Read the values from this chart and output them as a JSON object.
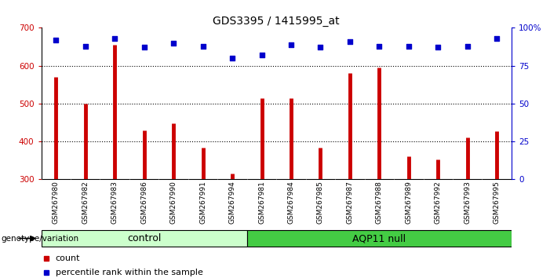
{
  "title": "GDS3395 / 1415995_at",
  "samples": [
    "GSM267980",
    "GSM267982",
    "GSM267983",
    "GSM267986",
    "GSM267990",
    "GSM267991",
    "GSM267994",
    "GSM267981",
    "GSM267984",
    "GSM267985",
    "GSM267987",
    "GSM267988",
    "GSM267989",
    "GSM267992",
    "GSM267993",
    "GSM267995"
  ],
  "counts": [
    570,
    500,
    655,
    430,
    447,
    383,
    315,
    515,
    515,
    384,
    580,
    595,
    360,
    353,
    410,
    428
  ],
  "percentile_ranks": [
    92,
    88,
    93,
    87,
    90,
    88,
    80,
    82,
    89,
    87,
    91,
    88,
    88,
    87,
    88,
    93
  ],
  "n_control": 7,
  "n_aqp11": 9,
  "control_color": "#ccffcc",
  "aqp11_color": "#44cc44",
  "bar_color": "#cc0000",
  "dot_color": "#0000cc",
  "ylim_left": [
    300,
    700
  ],
  "ylim_right": [
    0,
    100
  ],
  "yticks_left": [
    300,
    400,
    500,
    600,
    700
  ],
  "yticks_right": [
    0,
    25,
    50,
    75,
    100
  ],
  "grid_lines": [
    400,
    500,
    600
  ],
  "background_color": "#ffffff",
  "sample_bg_color": "#cccccc",
  "title_fontsize": 10,
  "tick_fontsize": 7.5,
  "sample_fontsize": 6.5,
  "legend_fontsize": 8,
  "group_fontsize": 9
}
